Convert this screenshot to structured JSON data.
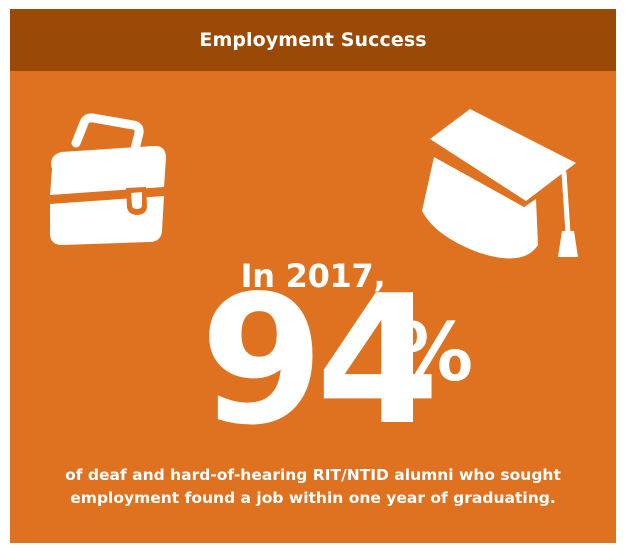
{
  "header": {
    "title": "Employment Success"
  },
  "icons": {
    "left": "briefcase-icon",
    "right": "graduation-cap-icon"
  },
  "headline": {
    "year_line": "In 2017,",
    "stat": "94",
    "stat_suffix": "%",
    "caption_line1": "of deaf and hard-of-hearing RIT/NTID alumni who sought",
    "caption_line2": "employment found a job within one year of graduating."
  },
  "colors": {
    "background": "#de7221",
    "header": "#9a4a06",
    "text": "#ffffff"
  }
}
